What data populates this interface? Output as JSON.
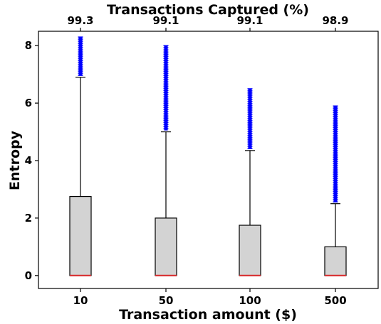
{
  "chart_data": {
    "type": "box",
    "title": "Transactions Captured (%)",
    "xlabel": "Transaction amount ($)",
    "ylabel": "Entropy",
    "categories": [
      "10",
      "50",
      "100",
      "500"
    ],
    "top_axis_labels": [
      "99.3",
      "99.1",
      "99.1",
      "98.9"
    ],
    "ylim": [
      -0.45,
      8.5
    ],
    "yticks": [
      0,
      2,
      4,
      6,
      8
    ],
    "grid": false,
    "boxes": [
      {
        "category": "10",
        "q1": 0,
        "median": 0,
        "q3": 2.75,
        "whisker_low": 0,
        "whisker_high": 6.9,
        "outlier_range": [
          6.9,
          8.3
        ]
      },
      {
        "category": "50",
        "q1": 0,
        "median": 0,
        "q3": 2.0,
        "whisker_low": 0,
        "whisker_high": 5.0,
        "outlier_range": [
          5.0,
          8.0
        ]
      },
      {
        "category": "100",
        "q1": 0,
        "median": 0,
        "q3": 1.75,
        "whisker_low": 0,
        "whisker_high": 4.35,
        "outlier_range": [
          4.35,
          6.5
        ]
      },
      {
        "category": "500",
        "q1": 0,
        "median": 0,
        "q3": 1.0,
        "whisker_low": 0,
        "whisker_high": 2.5,
        "outlier_range": [
          2.5,
          5.9
        ]
      }
    ],
    "colors": {
      "box_fill": "#d3d3d3",
      "box_edge": "#000000",
      "median": "#d62728",
      "outliers": "#0000ff"
    }
  }
}
